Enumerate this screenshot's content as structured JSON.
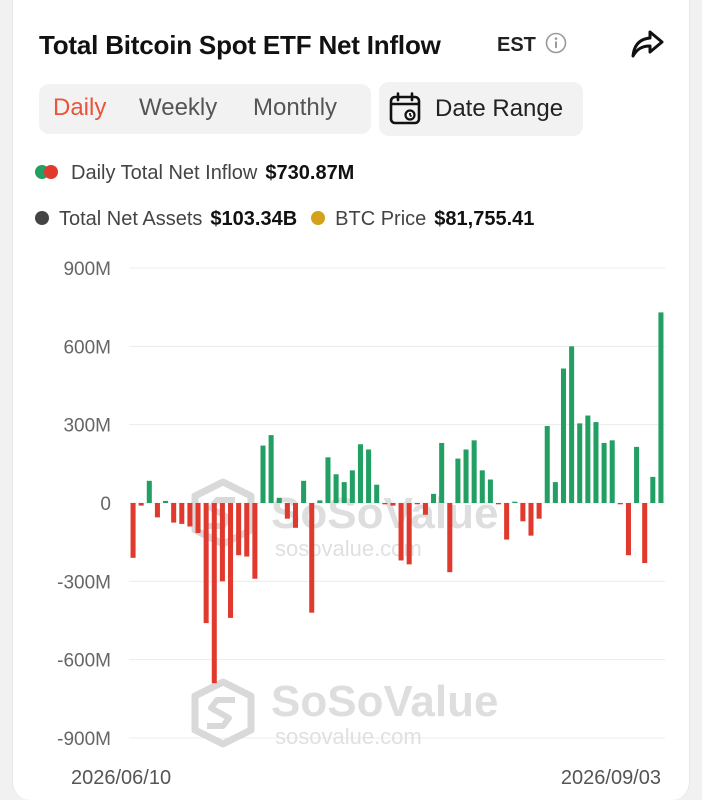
{
  "header": {
    "title": "Total Bitcoin Spot ETF Net Inflow",
    "timezone": "EST"
  },
  "tabs": [
    {
      "label": "Daily",
      "active": true
    },
    {
      "label": "Weekly",
      "active": false
    },
    {
      "label": "Monthly",
      "active": false
    }
  ],
  "date_range": {
    "label": "Date Range"
  },
  "legend": {
    "inflow_label": "Daily Total Net Inflow",
    "inflow_value": "$730.87M",
    "assets_label": "Total Net Assets",
    "assets_value": "$103.34B",
    "price_label": "BTC Price",
    "price_value": "$81,755.41"
  },
  "watermark": {
    "brand": "SoSoValue",
    "url": "sosovalue.com"
  },
  "colors": {
    "positive": "#22a063",
    "negative": "#e03a2f",
    "assets": "#444444",
    "price": "#d3a21a",
    "active_tab": "#e8553a"
  },
  "chart_data": {
    "type": "bar",
    "title": "Total Bitcoin Spot ETF Net Inflow",
    "ylim": [
      -900,
      900
    ],
    "y_unit": "M",
    "y_ticks": [
      900,
      600,
      300,
      0,
      -300,
      -600,
      -900
    ],
    "y_tick_labels": [
      "900M",
      "600M",
      "300M",
      "0",
      "-300M",
      "-600M",
      "-900M"
    ],
    "x_tick_labels": [
      "2026/06/10",
      "2026/09/03"
    ],
    "grid": true,
    "series": [
      {
        "name": "Daily Total Net Inflow",
        "values": [
          -210,
          -10,
          85,
          -55,
          8,
          -75,
          -80,
          -90,
          -115,
          -460,
          -690,
          -300,
          -440,
          -200,
          -205,
          -290,
          220,
          260,
          20,
          -60,
          -95,
          85,
          -420,
          10,
          175,
          110,
          80,
          125,
          225,
          205,
          70,
          -5,
          -10,
          -220,
          -235,
          -5,
          -45,
          35,
          230,
          -265,
          170,
          205,
          240,
          125,
          90,
          -5,
          -140,
          5,
          -70,
          -125,
          -60,
          295,
          80,
          515,
          600,
          305,
          335,
          310,
          230,
          240,
          -5,
          -200,
          215,
          -230,
          100,
          730
        ]
      }
    ]
  }
}
